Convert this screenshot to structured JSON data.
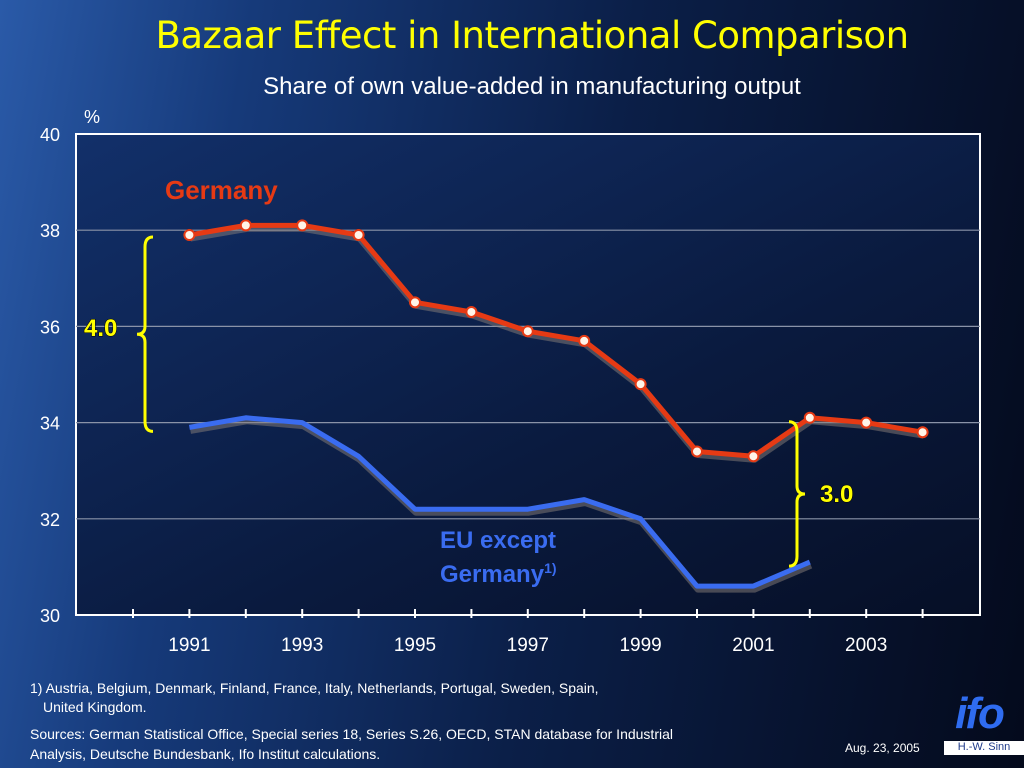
{
  "title": "Bazaar Effect in International Comparison",
  "subtitle": "Share of  own value-added in manufacturing output",
  "chart_data": {
    "type": "line",
    "unit_label": "%",
    "ylim": [
      30,
      40
    ],
    "y_ticks": [
      "30",
      "32",
      "34",
      "36",
      "38",
      "40"
    ],
    "x_tick_labels": [
      "1991",
      "1993",
      "1995",
      "1997",
      "1999",
      "2001",
      "2003"
    ],
    "grid": true,
    "x": [
      1991,
      1992,
      1993,
      1994,
      1995,
      1996,
      1997,
      1998,
      1999,
      2000,
      2001,
      2002,
      2003,
      2004
    ],
    "series": [
      {
        "name": "Germany",
        "color": "#e63a14",
        "markers": true,
        "values": [
          37.9,
          38.1,
          38.1,
          37.9,
          36.5,
          36.3,
          35.9,
          35.7,
          34.8,
          33.4,
          33.3,
          34.1,
          34.0,
          33.8
        ]
      },
      {
        "name": "EU except Germany",
        "name_superscript": "1)",
        "color": "#3a6cf0",
        "markers": false,
        "values": [
          33.9,
          34.1,
          34.0,
          33.3,
          32.2,
          32.2,
          32.2,
          32.4,
          32.0,
          30.6,
          30.6,
          31.1,
          null,
          null
        ]
      }
    ],
    "annotations": [
      {
        "text": "4.0",
        "year": 1991,
        "from": 33.9,
        "to": 37.9
      },
      {
        "text": "3.0",
        "year": 2002,
        "from": 31.1,
        "to": 34.1
      }
    ]
  },
  "footnotes": {
    "note1_line1": "1) Austria, Belgium, Denmark, Finland, France, Italy, Netherlands, Portugal, Sweden, Spain,",
    "note1_line2": "United Kingdom.",
    "sources_line1": "Sources: German Statistical Office, Special series 18, Series S.26, OECD, STAN database for Industrial",
    "sources_line2": "Analysis, Deutsche Bundesbank, Ifo Institut calculations."
  },
  "date": "Aug. 23, 2005",
  "logo_text": "ifo",
  "author": "H.-W. Sinn"
}
